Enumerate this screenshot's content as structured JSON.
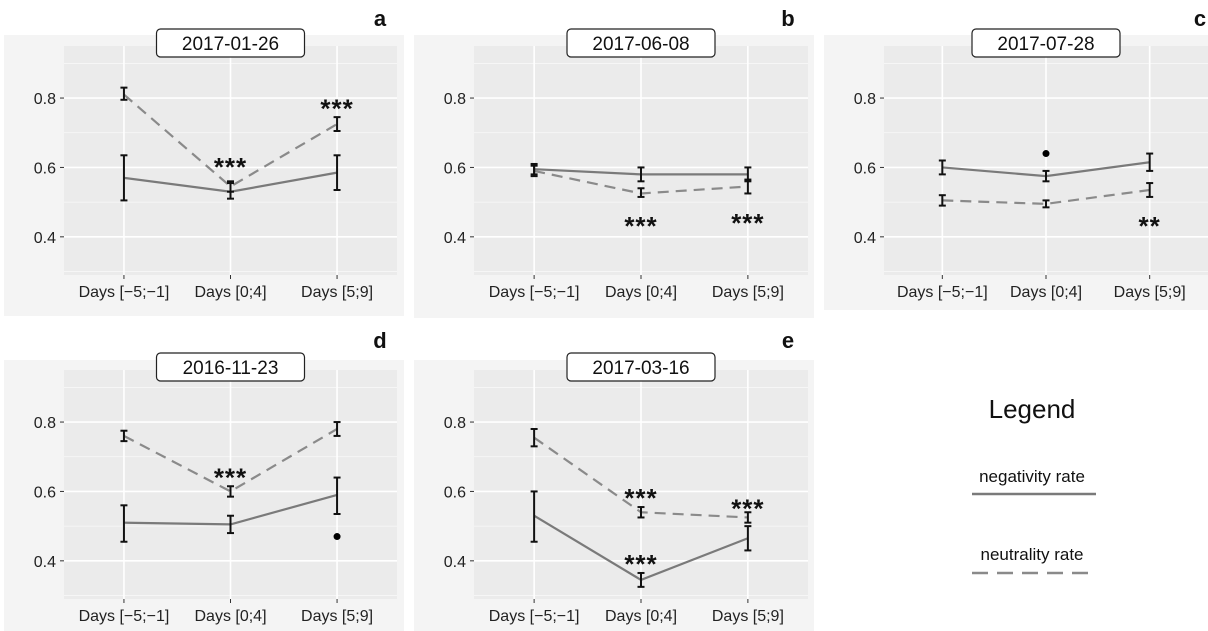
{
  "colors": {
    "negativity": "#7a7a7a",
    "neutrality": "#8a8a8a",
    "panel_bg": "#ebebeb",
    "grid": "#ffffff",
    "errorbar": "#111111"
  },
  "legend": {
    "title": "Legend",
    "entries": [
      {
        "label": "negativity rate",
        "line": "solid"
      },
      {
        "label": "neutrality rate",
        "line": "dashed"
      }
    ]
  },
  "chart_data": [
    {
      "type": "line",
      "panel_label": "a",
      "title": "2017-01-26",
      "categories": [
        "Days [−5;−1]",
        "Days [0;4]",
        "Days [5;9]"
      ],
      "yticks": [
        "0.4",
        "0.6",
        "0.8"
      ],
      "ylim": [
        0.29,
        0.95
      ],
      "series": [
        {
          "name": "negativity rate",
          "values": [
            0.57,
            0.53,
            0.585
          ],
          "err_low": [
            0.505,
            0.51,
            0.535
          ],
          "err_high": [
            0.635,
            0.555,
            0.635
          ]
        },
        {
          "name": "neutrality rate",
          "values": [
            0.81,
            0.545,
            0.725
          ],
          "err_low": [
            0.795,
            0.53,
            0.705
          ],
          "err_high": [
            0.83,
            0.56,
            0.745
          ]
        }
      ],
      "significance": [
        {
          "category": 1,
          "y": 0.615,
          "text": "***"
        },
        {
          "category": 2,
          "y": 0.785,
          "text": "***"
        }
      ],
      "outliers": []
    },
    {
      "type": "line",
      "panel_label": "b",
      "title": "2017-06-08",
      "categories": [
        "Days [−5;−1]",
        "Days [0;4]",
        "Days [5;9]"
      ],
      "yticks": [
        "0.4",
        "0.6",
        "0.8"
      ],
      "ylim": [
        0.29,
        0.95
      ],
      "series": [
        {
          "name": "negativity rate",
          "values": [
            0.595,
            0.58,
            0.58
          ],
          "err_low": [
            0.58,
            0.56,
            0.56
          ],
          "err_high": [
            0.61,
            0.6,
            0.6
          ]
        },
        {
          "name": "neutrality rate",
          "values": [
            0.59,
            0.525,
            0.545
          ],
          "err_low": [
            0.575,
            0.515,
            0.525
          ],
          "err_high": [
            0.605,
            0.54,
            0.565
          ]
        }
      ],
      "significance": [
        {
          "category": 1,
          "y": 0.445,
          "text": "***"
        },
        {
          "category": 2,
          "y": 0.455,
          "text": "***"
        }
      ],
      "outliers": []
    },
    {
      "type": "line",
      "panel_label": "c",
      "title": "2017-07-28",
      "categories": [
        "Days [−5;−1]",
        "Days [0;4]",
        "Days [5;9]"
      ],
      "yticks": [
        "0.4",
        "0.6",
        "0.8"
      ],
      "ylim": [
        0.29,
        0.95
      ],
      "series": [
        {
          "name": "negativity rate",
          "values": [
            0.6,
            0.575,
            0.615
          ],
          "err_low": [
            0.58,
            0.56,
            0.59
          ],
          "err_high": [
            0.62,
            0.59,
            0.64
          ]
        },
        {
          "name": "neutrality rate",
          "values": [
            0.505,
            0.495,
            0.535
          ],
          "err_low": [
            0.49,
            0.485,
            0.515
          ],
          "err_high": [
            0.52,
            0.505,
            0.555
          ]
        }
      ],
      "significance": [
        {
          "category": 2,
          "y": 0.445,
          "text": "**"
        }
      ],
      "outliers": [
        {
          "category": 1,
          "y": 0.64
        }
      ]
    },
    {
      "type": "line",
      "panel_label": "d",
      "title": "2016-11-23",
      "categories": [
        "Days [−5;−1]",
        "Days [0;4]",
        "Days [5;9]"
      ],
      "yticks": [
        "0.4",
        "0.6",
        "0.8"
      ],
      "ylim": [
        0.29,
        0.95
      ],
      "series": [
        {
          "name": "negativity rate",
          "values": [
            0.51,
            0.505,
            0.59
          ],
          "err_low": [
            0.455,
            0.48,
            0.535
          ],
          "err_high": [
            0.56,
            0.53,
            0.64
          ]
        },
        {
          "name": "neutrality rate",
          "values": [
            0.76,
            0.6,
            0.78
          ],
          "err_low": [
            0.745,
            0.585,
            0.76
          ],
          "err_high": [
            0.775,
            0.615,
            0.8
          ]
        }
      ],
      "significance": [
        {
          "category": 1,
          "y": 0.655,
          "text": "***"
        }
      ],
      "outliers": [
        {
          "category": 2,
          "y": 0.47
        }
      ]
    },
    {
      "type": "line",
      "panel_label": "e",
      "title": "2017-03-16",
      "categories": [
        "Days [−5;−1]",
        "Days [0;4]",
        "Days [5;9]"
      ],
      "yticks": [
        "0.4",
        "0.6",
        "0.8"
      ],
      "ylim": [
        0.29,
        0.95
      ],
      "series": [
        {
          "name": "negativity rate",
          "values": [
            0.53,
            0.345,
            0.465
          ],
          "err_low": [
            0.455,
            0.325,
            0.43
          ],
          "err_high": [
            0.6,
            0.365,
            0.5
          ]
        },
        {
          "name": "neutrality rate",
          "values": [
            0.755,
            0.54,
            0.525
          ],
          "err_low": [
            0.73,
            0.525,
            0.51
          ],
          "err_high": [
            0.78,
            0.555,
            0.54
          ]
        }
      ],
      "significance": [
        {
          "category": 1,
          "y": 0.595,
          "text": "***"
        },
        {
          "category": 1,
          "y": 0.405,
          "text": "***"
        },
        {
          "category": 2,
          "y": 0.565,
          "text": "***"
        }
      ],
      "outliers": []
    }
  ]
}
